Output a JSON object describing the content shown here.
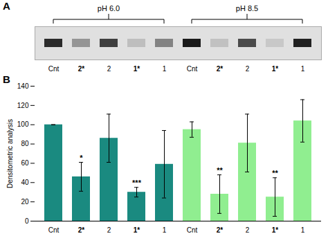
{
  "chart_data": [
    {
      "type": "heatmap",
      "title": "A",
      "categories": [
        "Cnt",
        "2*",
        "2",
        "1*",
        "1",
        "Cnt",
        "2*",
        "2",
        "1*",
        "1"
      ],
      "values": [
        0.88,
        0.45,
        0.8,
        0.28,
        0.52,
        0.95,
        0.27,
        0.75,
        0.24,
        0.92
      ],
      "annotations": [
        "pH 6.0",
        "pH 8.5"
      ]
    },
    {
      "type": "bar",
      "title": "B",
      "categories": [
        "Cnt",
        "2*",
        "2",
        "1*",
        "1",
        "Cnt",
        "2*",
        "2",
        "1*",
        "1"
      ],
      "values": [
        100,
        46,
        86,
        30,
        59,
        95,
        28,
        81,
        25,
        104
      ],
      "errors": [
        0,
        15,
        25,
        5,
        35,
        8,
        20,
        30,
        20,
        22
      ],
      "colors": [
        "#1a8a80",
        "#1a8a80",
        "#1a8a80",
        "#1a8a80",
        "#1a8a80",
        "#90ee90",
        "#90ee90",
        "#90ee90",
        "#90ee90",
        "#90ee90"
      ],
      "annotations": [
        null,
        "*",
        null,
        "***",
        null,
        null,
        "**",
        null,
        "**",
        null
      ],
      "ylabel": "Densitometric analysis",
      "ylim": [
        0,
        140
      ],
      "yticks": [
        0,
        20,
        40,
        60,
        80,
        100,
        120,
        140
      ]
    }
  ]
}
